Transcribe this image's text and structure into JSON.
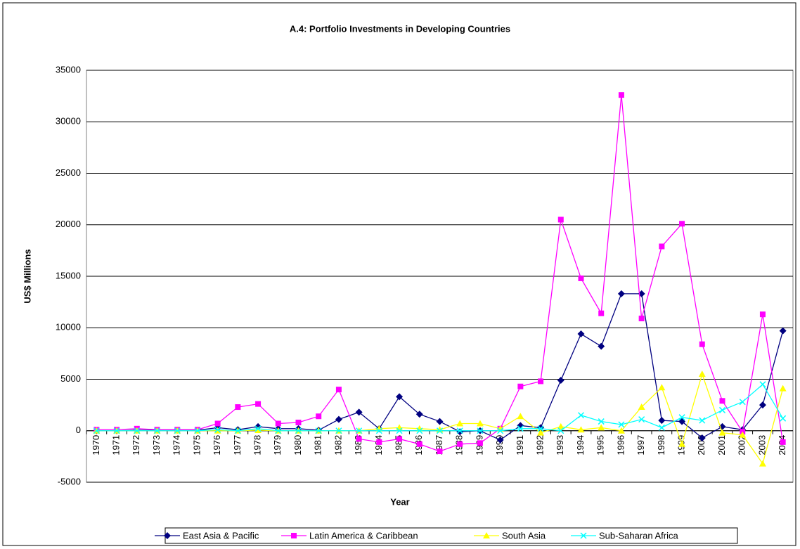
{
  "chart_data": {
    "type": "line",
    "title": "A.4: Portfolio Investments in Developing Countries",
    "xlabel": "Year",
    "ylabel": "US$ Millions",
    "categories": [
      "1970",
      "1971",
      "1972",
      "1973",
      "1974",
      "1975",
      "1976",
      "1977",
      "1978",
      "1979",
      "1980",
      "1981",
      "1982",
      "1983",
      "1984",
      "1985",
      "1986",
      "1987",
      "1988",
      "1989",
      "1990",
      "1991",
      "1992",
      "1993",
      "1994",
      "1995",
      "1996",
      "1997",
      "1998",
      "1999",
      "2000",
      "2001",
      "2002",
      "2003",
      "2004"
    ],
    "series": [
      {
        "name": "East Asia & Pacific",
        "color": "#000080",
        "marker": "diamond",
        "values": [
          0,
          0,
          50,
          50,
          50,
          50,
          300,
          100,
          400,
          200,
          200,
          50,
          1100,
          1800,
          200,
          3300,
          1600,
          900,
          -100,
          0,
          -900,
          500,
          300,
          4900,
          9400,
          8200,
          13300,
          13300,
          1000,
          900,
          -700,
          400,
          100,
          2500,
          9700
        ]
      },
      {
        "name": "Latin America & Caribbean",
        "color": "#ff00ff",
        "marker": "square",
        "values": [
          100,
          100,
          200,
          100,
          100,
          100,
          700,
          2300,
          2600,
          700,
          800,
          1400,
          4000,
          -800,
          -1100,
          -800,
          -1300,
          -2000,
          -1300,
          -1200,
          200,
          4300,
          4800,
          20500,
          14800,
          11400,
          32600,
          10900,
          17900,
          20100,
          8400,
          2900,
          -100,
          11300,
          -1100
        ]
      },
      {
        "name": "South Asia",
        "color": "#ffff00",
        "marker": "triangle",
        "values": [
          0,
          0,
          0,
          0,
          0,
          0,
          0,
          0,
          50,
          0,
          0,
          0,
          0,
          0,
          200,
          300,
          200,
          100,
          700,
          700,
          200,
          1400,
          -200,
          400,
          100,
          300,
          0,
          2300,
          4200,
          -1300,
          5500,
          -200,
          -400,
          -3200,
          4100
        ]
      },
      {
        "name": "Sub-Saharan Africa",
        "color": "#00ffff",
        "marker": "x",
        "values": [
          0,
          0,
          0,
          0,
          0,
          0,
          100,
          0,
          200,
          0,
          0,
          0,
          0,
          0,
          0,
          0,
          0,
          0,
          0,
          0,
          0,
          200,
          200,
          0,
          1500,
          900,
          600,
          1100,
          300,
          1300,
          1000,
          2000,
          2800,
          4500,
          1200
        ]
      }
    ],
    "ylim": [
      -5000,
      35000
    ],
    "yticks": [
      -5000,
      0,
      5000,
      10000,
      15000,
      20000,
      25000,
      30000,
      35000
    ],
    "grid": true,
    "legend": "bottom"
  }
}
